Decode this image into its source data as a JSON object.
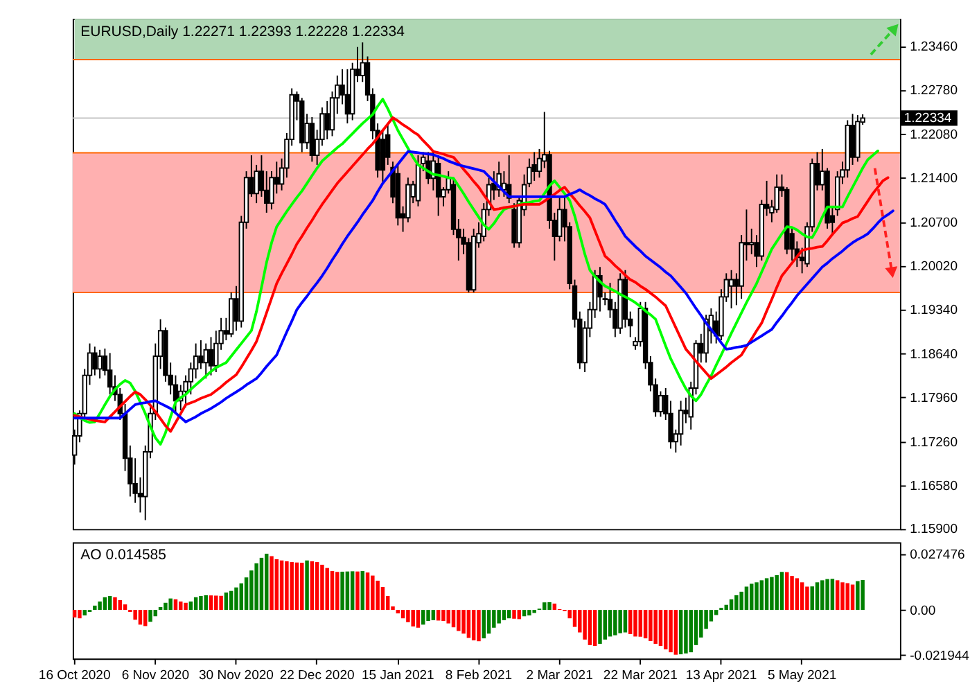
{
  "chart_data": [
    {
      "type": "candlestick",
      "title": "EURUSD,Daily  1.22271 1.22393 1.22228 1.22334",
      "tick_labels": "y",
      "categories": [
        null,
        null,
        null,
        null,
        null,
        null,
        null,
        null,
        null,
        null,
        null,
        null,
        null,
        null,
        null,
        null,
        null,
        null,
        null,
        null,
        null,
        null,
        null,
        null,
        null,
        null,
        null,
        null,
        null,
        null,
        null,
        null,
        null,
        null,
        null,
        null,
        null,
        null,
        null,
        null,
        null,
        null,
        null,
        null,
        null,
        null,
        null,
        null,
        null,
        null,
        null,
        null,
        null,
        null,
        null,
        null,
        null,
        null,
        null,
        null,
        null,
        null,
        null,
        null,
        null,
        null,
        null,
        null,
        null,
        null,
        null,
        null,
        null,
        null,
        null,
        null,
        null,
        null,
        null,
        null,
        null,
        null,
        null,
        null,
        null,
        null,
        null,
        null,
        null,
        null,
        null,
        null,
        null,
        null,
        null,
        null,
        null,
        null,
        null,
        null,
        null,
        null,
        null,
        null,
        null,
        null,
        null,
        null,
        null,
        null,
        null,
        null,
        null,
        null,
        null,
        null,
        null,
        null,
        null,
        null,
        null,
        null,
        null,
        null,
        null,
        null,
        null,
        null,
        null,
        null,
        null,
        null,
        null,
        null,
        null,
        null,
        null,
        null,
        null,
        null,
        null,
        null,
        null,
        null,
        null,
        null,
        null,
        null,
        null,
        null,
        null,
        null,
        null,
        null,
        null,
        null,
        null,
        null,
        null,
        null,
        null,
        null,
        null,
        null
      ],
      "ylim": [
        1.1589,
        1.2389
      ],
      "yticks": [
        {
          "value": 1.2346,
          "label": "1.23460"
        },
        {
          "value": 1.2278,
          "label": "1.22780"
        },
        {
          "value": 1.2208,
          "label": "1.22080"
        },
        {
          "value": 1.214,
          "label": "1.21400"
        },
        {
          "value": 1.207,
          "label": "1.20700"
        },
        {
          "value": 1.2002,
          "label": "1.20020"
        },
        {
          "value": 1.1934,
          "label": "1.19340"
        },
        {
          "value": 1.1864,
          "label": "1.18640"
        },
        {
          "value": 1.1796,
          "label": "1.17960"
        },
        {
          "value": 1.1726,
          "label": "1.17260"
        },
        {
          "value": 1.1658,
          "label": "1.16580"
        },
        {
          "value": 1.159,
          "label": "1.15900"
        }
      ],
      "bands": [
        {
          "axis": "y",
          "from": 1.2325,
          "to": 1.2389,
          "color": "#afd7b4"
        },
        {
          "axis": "y",
          "from": 1.196,
          "to": 1.2179,
          "color": "#ffb0b0"
        }
      ],
      "ref_lines": [
        {
          "axis": "y",
          "value": 1.22334,
          "label": "1.22334",
          "color": "#c0c0c0"
        },
        {
          "axis": "y",
          "value": 1.2325,
          "color": "#ff6600"
        },
        {
          "axis": "y",
          "value": 1.2179,
          "color": "#ff6600"
        },
        {
          "axis": "y",
          "value": 1.196,
          "color": "#ff6600"
        }
      ],
      "ohlc": [
        [
          1.1705,
          1.1745,
          1.169,
          1.1735
        ],
        [
          1.1735,
          1.1775,
          1.1725,
          1.177
        ],
        [
          1.177,
          1.184,
          1.176,
          1.183
        ],
        [
          1.183,
          1.188,
          1.1815,
          1.1865
        ],
        [
          1.1865,
          1.1875,
          1.183,
          1.184
        ],
        [
          1.184,
          1.187,
          1.1825,
          1.186
        ],
        [
          1.186,
          1.1872,
          1.183,
          1.1838
        ],
        [
          1.1838,
          1.1865,
          1.18,
          1.1812
        ],
        [
          1.1812,
          1.183,
          1.179,
          1.18
        ],
        [
          1.18,
          1.181,
          1.176,
          1.177
        ],
        [
          1.177,
          1.1785,
          1.168,
          1.17
        ],
        [
          1.17,
          1.172,
          1.164,
          1.166
        ],
        [
          1.166,
          1.17,
          1.163,
          1.1645
        ],
        [
          1.1645,
          1.167,
          1.1615,
          1.164
        ],
        [
          1.164,
          1.172,
          1.1603,
          1.171
        ],
        [
          1.171,
          1.178,
          1.17,
          1.177
        ],
        [
          1.177,
          1.188,
          1.176,
          1.186
        ],
        [
          1.186,
          1.1918,
          1.184,
          1.19
        ],
        [
          1.19,
          1.1905,
          1.182,
          1.183
        ],
        [
          1.183,
          1.185,
          1.18,
          1.1815
        ],
        [
          1.1815,
          1.183,
          1.177,
          1.179
        ],
        [
          1.179,
          1.1815,
          1.1775,
          1.1805
        ],
        [
          1.1805,
          1.183,
          1.178,
          1.182
        ],
        [
          1.182,
          1.185,
          1.18,
          1.184
        ],
        [
          1.184,
          1.188,
          1.1825,
          1.186
        ],
        [
          1.186,
          1.1885,
          1.184,
          1.185
        ],
        [
          1.185,
          1.188,
          1.1825,
          1.187
        ],
        [
          1.187,
          1.189,
          1.183,
          1.1845
        ],
        [
          1.1845,
          1.19,
          1.1835,
          1.188
        ],
        [
          1.188,
          1.192,
          1.187,
          1.19
        ],
        [
          1.19,
          1.192,
          1.1885,
          1.1895
        ],
        [
          1.1895,
          1.196,
          1.189,
          1.195
        ],
        [
          1.195,
          1.197,
          1.19,
          1.1915
        ],
        [
          1.1915,
          1.208,
          1.1905,
          1.207
        ],
        [
          1.207,
          1.215,
          1.206,
          1.214
        ],
        [
          1.214,
          1.2175,
          1.211,
          1.2115
        ],
        [
          1.2115,
          1.216,
          1.21,
          1.215
        ],
        [
          1.215,
          1.2175,
          1.211,
          1.212
        ],
        [
          1.212,
          1.215,
          1.2085,
          1.21
        ],
        [
          1.21,
          1.215,
          1.209,
          1.214
        ],
        [
          1.214,
          1.2165,
          1.2115,
          1.213
        ],
        [
          1.213,
          1.217,
          1.212,
          1.2155
        ],
        [
          1.2155,
          1.221,
          1.214,
          1.22
        ],
        [
          1.22,
          1.228,
          1.219,
          1.227
        ],
        [
          1.227,
          1.2275,
          1.223,
          1.226
        ],
        [
          1.226,
          1.2265,
          1.218,
          1.2195
        ],
        [
          1.2195,
          1.224,
          1.2185,
          1.2225
        ],
        [
          1.2225,
          1.2235,
          1.2165,
          1.2175
        ],
        [
          1.2175,
          1.2215,
          1.216,
          1.22
        ],
        [
          1.22,
          1.225,
          1.219,
          1.224
        ],
        [
          1.224,
          1.226,
          1.22,
          1.2215
        ],
        [
          1.2215,
          1.2275,
          1.2205,
          1.2265
        ],
        [
          1.2265,
          1.23,
          1.224,
          1.2285
        ],
        [
          1.2285,
          1.231,
          1.2255,
          1.227
        ],
        [
          1.227,
          1.231,
          1.2225,
          1.224
        ],
        [
          1.224,
          1.232,
          1.223,
          1.231
        ],
        [
          1.231,
          1.2345,
          1.229,
          1.23
        ],
        [
          1.23,
          1.2352,
          1.229,
          1.232
        ],
        [
          1.232,
          1.233,
          1.226,
          1.227
        ],
        [
          1.227,
          1.228,
          1.22,
          1.2214
        ],
        [
          1.2214,
          1.2225,
          1.214,
          1.2152
        ],
        [
          1.22,
          1.2215,
          1.213,
          1.2152
        ],
        [
          1.2207,
          1.2225,
          1.216,
          1.2172
        ],
        [
          1.2156,
          1.2165,
          1.21,
          1.211
        ],
        [
          1.2146,
          1.216,
          1.2065,
          1.2077
        ],
        [
          1.2083,
          1.2095,
          1.2055,
          1.2077
        ],
        [
          1.2077,
          1.214,
          1.207,
          1.2129
        ],
        [
          1.211,
          1.2135,
          1.21,
          1.2129
        ],
        [
          1.2104,
          1.2175,
          1.2095,
          1.216
        ],
        [
          1.2162,
          1.218,
          1.215,
          1.2172
        ],
        [
          1.2166,
          1.218,
          1.213,
          1.2139
        ],
        [
          1.2139,
          1.218,
          1.212,
          1.2166
        ],
        [
          1.2162,
          1.2175,
          1.208,
          1.211
        ],
        [
          1.211,
          1.2125,
          1.2095,
          1.2121
        ],
        [
          1.2121,
          1.215,
          1.2115,
          1.2139
        ],
        [
          1.2129,
          1.214,
          1.205,
          1.2059
        ],
        [
          1.2059,
          1.2075,
          1.201,
          1.2046
        ],
        [
          1.2046,
          1.206,
          1.202,
          1.2036
        ],
        [
          1.2038,
          1.2045,
          1.196,
          1.1964
        ],
        [
          1.1964,
          1.206,
          1.196,
          1.2048
        ],
        [
          1.2038,
          1.207,
          1.203,
          1.2052
        ],
        [
          1.2048,
          1.21,
          1.204,
          1.209
        ],
        [
          1.209,
          1.214,
          1.208,
          1.2129
        ],
        [
          1.2131,
          1.215,
          1.2105,
          1.2121
        ],
        [
          1.2121,
          1.2165,
          1.211,
          1.2146
        ],
        [
          1.2121,
          1.215,
          1.211,
          1.2131
        ],
        [
          1.2129,
          1.2175,
          1.21,
          1.2108
        ],
        [
          1.209,
          1.21,
          1.203,
          1.2038
        ],
        [
          1.2038,
          1.211,
          1.203,
          1.2104
        ],
        [
          1.209,
          1.2145,
          1.208,
          1.2129
        ],
        [
          1.2131,
          1.217,
          1.2125,
          1.2156
        ],
        [
          1.216,
          1.218,
          1.2135,
          1.215
        ],
        [
          1.215,
          1.2185,
          1.214,
          1.217
        ],
        [
          1.2166,
          1.2243,
          1.2155,
          1.2176
        ],
        [
          1.2176,
          1.2182,
          1.206,
          1.2073
        ],
        [
          1.2073,
          1.2085,
          1.201,
          1.2048
        ],
        [
          1.2048,
          1.211,
          1.204,
          1.209
        ],
        [
          1.209,
          1.211,
          1.204,
          1.2063
        ],
        [
          1.2063,
          1.207,
          1.1965,
          1.1974
        ],
        [
          1.197,
          1.198,
          1.1905,
          1.1918
        ],
        [
          1.1918,
          1.193,
          1.184,
          1.185
        ],
        [
          1.185,
          1.1915,
          1.1835,
          1.1904
        ],
        [
          1.1904,
          1.1945,
          1.189,
          1.1933
        ],
        [
          1.1933,
          1.1995,
          1.192,
          1.1986
        ],
        [
          1.1986,
          1.2,
          1.193,
          1.1953
        ],
        [
          1.195,
          1.196,
          1.194,
          1.1949
        ],
        [
          1.1949,
          1.1975,
          1.192,
          1.1933
        ],
        [
          1.1933,
          1.1945,
          1.189,
          1.1904
        ],
        [
          1.1904,
          1.199,
          1.1895,
          1.198
        ],
        [
          1.198,
          1.1995,
          1.1905,
          1.1918
        ],
        [
          1.1918,
          1.193,
          1.189,
          1.1908
        ],
        [
          1.1877,
          1.189,
          1.187,
          1.1883
        ],
        [
          1.1883,
          1.1945,
          1.1875,
          1.1935
        ],
        [
          1.1935,
          1.1945,
          1.184,
          1.185
        ],
        [
          1.185,
          1.186,
          1.1805,
          1.1815
        ],
        [
          1.1815,
          1.1825,
          1.1765,
          1.1773
        ],
        [
          1.1773,
          1.1805,
          1.1765,
          1.1798
        ],
        [
          1.1798,
          1.181,
          1.176,
          1.177
        ],
        [
          1.177,
          1.179,
          1.1715,
          1.1726
        ],
        [
          1.1726,
          1.1745,
          1.1709,
          1.1738
        ],
        [
          1.1738,
          1.179,
          1.172,
          1.1775
        ],
        [
          1.1775,
          1.1795,
          1.1755,
          1.177
        ],
        [
          1.1765,
          1.182,
          1.1745,
          1.181
        ],
        [
          1.181,
          1.1885,
          1.18,
          1.188
        ],
        [
          1.188,
          1.1895,
          1.185,
          1.1865
        ],
        [
          1.1865,
          1.1925,
          1.185,
          1.1918
        ],
        [
          1.19,
          1.1935,
          1.188,
          1.1924
        ],
        [
          1.1915,
          1.193,
          1.188,
          1.1892
        ],
        [
          1.1892,
          1.1965,
          1.1885,
          1.1953
        ],
        [
          1.1953,
          1.199,
          1.1945,
          1.198
        ],
        [
          1.197,
          1.1995,
          1.1935,
          1.198
        ],
        [
          1.198,
          1.199,
          1.194,
          1.197
        ],
        [
          1.197,
          1.205,
          1.195,
          1.2038
        ],
        [
          1.2038,
          1.209,
          1.201,
          1.2035
        ],
        [
          1.2035,
          1.206,
          1.202,
          1.2038
        ],
        [
          1.2038,
          1.205,
          1.2,
          1.2017
        ],
        [
          1.2017,
          1.2105,
          1.201,
          1.2098
        ],
        [
          1.2098,
          1.2135,
          1.208,
          1.2092
        ],
        [
          1.2085,
          1.2105,
          1.207,
          1.2094
        ],
        [
          1.209,
          1.2145,
          1.2085,
          1.2125
        ],
        [
          1.2125,
          1.2145,
          1.211,
          1.212
        ],
        [
          1.2121,
          1.2125,
          1.202,
          1.2028
        ],
        [
          1.2052,
          1.206,
          1.201,
          1.2028
        ],
        [
          1.2028,
          1.204,
          1.2,
          1.2015
        ],
        [
          1.2015,
          1.203,
          1.199,
          1.201
        ],
        [
          1.2005,
          1.207,
          1.2,
          1.2063
        ],
        [
          1.2063,
          1.217,
          1.2055,
          1.2162
        ],
        [
          1.2162,
          1.218,
          1.212,
          1.2129
        ],
        [
          1.2129,
          1.2185,
          1.212,
          1.215
        ],
        [
          1.215,
          1.2155,
          1.206,
          1.2069
        ],
        [
          1.208,
          1.2095,
          1.205,
          1.207
        ],
        [
          1.209,
          1.215,
          1.208,
          1.2141
        ],
        [
          1.2141,
          1.2165,
          1.213,
          1.2152
        ],
        [
          1.2152,
          1.223,
          1.214,
          1.2222
        ],
        [
          1.2222,
          1.224,
          1.216,
          1.2172
        ],
        [
          1.2172,
          1.2238,
          1.2165,
          1.2228
        ],
        [
          1.22271,
          1.22393,
          1.22228,
          1.22334
        ],
        null,
        null,
        null,
        null,
        null,
        null,
        null
      ],
      "series": [
        {
          "type": "line",
          "color": "#00ff00",
          "values": [
            1.177,
            1.1764,
            1.1759,
            1.1756,
            1.1757,
            1.177,
            1.1784,
            1.1797,
            1.1808,
            1.1816,
            1.1822,
            1.1818,
            1.1805,
            1.1788,
            1.177,
            1.175,
            1.1732,
            1.1722,
            1.174,
            1.1765,
            1.1788,
            1.1795,
            1.18,
            1.1808,
            1.1815,
            1.1822,
            1.1829,
            1.1836,
            1.1842,
            1.1846,
            1.185,
            1.186,
            1.187,
            1.188,
            1.189,
            1.19,
            1.193,
            1.1968,
            1.2007,
            1.2038,
            1.2063,
            1.2075,
            1.2087,
            1.2098,
            1.2109,
            1.2119,
            1.2131,
            1.2143,
            1.2155,
            1.2166,
            1.2173,
            1.218,
            1.2187,
            1.2193,
            1.2201,
            1.2209,
            1.2217,
            1.2225,
            1.2232,
            1.2239,
            1.2252,
            1.2263,
            1.2248,
            1.2231,
            1.2214,
            1.22,
            1.2186,
            1.2172,
            1.216,
            1.2155,
            1.215,
            1.2145,
            1.2144,
            1.2142,
            1.214,
            1.2139,
            1.2127,
            1.2115,
            1.2102,
            1.209,
            1.2078,
            1.2066,
            1.2059,
            1.2068,
            1.208,
            1.209,
            1.2093,
            1.2095,
            1.2098,
            1.21,
            1.2101,
            1.2103,
            1.2104,
            1.2115,
            1.2127,
            1.2135,
            1.2125,
            1.2115,
            1.2104,
            1.208,
            1.205,
            1.202,
            1.1995,
            1.1985,
            1.1977,
            1.197,
            1.1966,
            1.1962,
            1.1957,
            1.1953,
            1.1949,
            1.1944,
            1.1938,
            1.1931,
            1.1925,
            1.1918,
            1.1897,
            1.1876,
            1.1856,
            1.184,
            1.1824,
            1.1809,
            1.1798,
            1.179,
            1.18,
            1.1815,
            1.1829,
            1.1846,
            1.1862,
            1.1879,
            1.1896,
            1.1912,
            1.1928,
            1.1944,
            1.1959,
            1.1974,
            1.1992,
            1.201,
            1.2028,
            1.204,
            1.2052,
            1.2063,
            1.2062,
            1.2058,
            1.2052,
            1.2047,
            1.2046,
            1.206,
            1.2078,
            1.2094,
            1.2094,
            1.2094,
            1.2094,
            1.211,
            1.2125,
            1.214,
            1.2155,
            1.2168,
            1.2175,
            1.2182,
            null,
            null,
            null,
            null
          ]
        },
        {
          "type": "line",
          "color": "#ff0000",
          "values": [
            1.1767,
            1.1765,
            1.1763,
            1.1761,
            1.1759,
            1.1758,
            1.1757,
            1.1765,
            1.1773,
            1.1781,
            1.1789,
            1.1797,
            1.1804,
            1.18,
            1.1792,
            1.1783,
            1.1773,
            1.1762,
            1.1751,
            1.1742,
            1.1756,
            1.177,
            1.1784,
            1.1787,
            1.179,
            1.1794,
            1.1797,
            1.18,
            1.1806,
            1.1812,
            1.1819,
            1.1825,
            1.1831,
            1.1843,
            1.1856,
            1.1869,
            1.1883,
            1.1905,
            1.1928,
            1.1951,
            1.1974,
            1.199,
            1.2005,
            1.202,
            1.2036,
            1.2048,
            1.2061,
            1.2073,
            1.2086,
            1.2098,
            1.2109,
            1.212,
            1.2131,
            1.214,
            1.2149,
            1.2158,
            1.2167,
            1.2176,
            1.2185,
            1.2193,
            1.2203,
            1.2214,
            1.2224,
            1.2234,
            1.2229,
            1.2223,
            1.2218,
            1.2212,
            1.2207,
            1.2198,
            1.219,
            1.2181,
            1.2179,
            1.2177,
            1.2174,
            1.2172,
            1.2163,
            1.2153,
            1.2144,
            1.2134,
            1.2125,
            1.2113,
            1.2102,
            1.209,
            1.2091,
            1.2093,
            1.2094,
            1.2095,
            1.2097,
            1.2098,
            1.2098,
            1.2098,
            1.2098,
            1.2103,
            1.2109,
            1.2114,
            1.212,
            1.2125,
            1.2115,
            1.2106,
            1.2096,
            1.2087,
            1.2077,
            1.2057,
            1.2037,
            1.2017,
            1.201,
            1.2002,
            1.1995,
            1.1987,
            1.198,
            1.1976,
            1.197,
            1.1965,
            1.1959,
            1.1953,
            1.1946,
            1.1939,
            1.1922,
            1.1905,
            1.1888,
            1.1871,
            1.1862,
            1.1852,
            1.1843,
            1.1834,
            1.1825,
            1.1831,
            1.1837,
            1.1843,
            1.185,
            1.1856,
            1.1862,
            1.1875,
            1.1887,
            1.19,
            1.1912,
            1.1931,
            1.1949,
            1.1968,
            1.1986,
            1.1996,
            1.2006,
            1.2016,
            1.2026,
            1.2028,
            1.2029,
            1.2031,
            1.2032,
            1.2041,
            1.2051,
            1.206,
            1.2069,
            1.2072,
            1.2076,
            1.2079,
            1.2091,
            1.2103,
            1.2115,
            1.2125,
            1.2135,
            1.214,
            null,
            null
          ]
        },
        {
          "type": "line",
          "color": "#0000ff",
          "values": [
            1.1763,
            1.1763,
            1.1763,
            1.1763,
            1.1763,
            1.1763,
            1.1763,
            1.1763,
            1.1763,
            1.1763,
            1.177,
            1.1777,
            1.1784,
            1.1786,
            1.1787,
            1.1789,
            1.179,
            1.1786,
            1.1782,
            1.1778,
            1.1771,
            1.1764,
            1.1757,
            1.1761,
            1.1765,
            1.177,
            1.1774,
            1.1778,
            1.1783,
            1.1788,
            1.1794,
            1.1799,
            1.1804,
            1.1809,
            1.1815,
            1.182,
            1.1825,
            1.1834,
            1.1844,
            1.1853,
            1.1862,
            1.188,
            1.1898,
            1.1915,
            1.1933,
            1.1944,
            1.1954,
            1.1965,
            1.1975,
            1.1986,
            1.1998,
            1.2011,
            1.2023,
            1.2036,
            1.2048,
            1.2059,
            1.207,
            1.2082,
            1.2093,
            1.2104,
            1.2118,
            1.2131,
            1.2141,
            1.2151,
            1.2161,
            1.2171,
            1.2181,
            1.218,
            1.2179,
            1.2178,
            1.2177,
            1.2176,
            1.2173,
            1.217,
            1.2166,
            1.2163,
            1.216,
            1.2158,
            1.2156,
            1.2154,
            1.2152,
            1.215,
            1.2142,
            1.2134,
            1.2126,
            1.2118,
            1.211,
            1.211,
            1.211,
            1.211,
            1.211,
            1.211,
            1.211,
            1.211,
            1.211,
            1.211,
            1.211,
            1.211,
            1.2114,
            1.2117,
            1.2121,
            1.2116,
            1.2112,
            1.2107,
            1.2103,
            1.2098,
            1.2086,
            1.2073,
            1.2061,
            1.2048,
            1.204,
            1.2032,
            1.2025,
            1.2017,
            1.2011,
            1.2005,
            1.1999,
            1.1992,
            1.1986,
            1.1977,
            1.1968,
            1.1959,
            1.1947,
            1.1935,
            1.1924,
            1.1912,
            1.1902,
            1.1892,
            1.1881,
            1.1871,
            1.1872,
            1.1874,
            1.1875,
            1.1877,
            1.1882,
            1.1887,
            1.1892,
            1.1897,
            1.1902,
            1.1913,
            1.1923,
            1.1934,
            1.1944,
            1.1955,
            1.1964,
            1.1973,
            1.1982,
            1.1991,
            1.2,
            1.2006,
            1.2013,
            1.2019,
            1.2025,
            1.2032,
            1.2038,
            1.2043,
            1.2047,
            1.2052,
            1.206,
            1.2069,
            1.2077,
            1.2082,
            1.2088,
            null
          ]
        }
      ]
    },
    {
      "type": "bar",
      "title": "AO 0.014585",
      "categories": [
        "16 Oct 2020",
        null,
        null,
        null,
        null,
        null,
        null,
        null,
        null,
        null,
        null,
        null,
        null,
        null,
        null,
        null,
        "6 Nov 2020",
        null,
        null,
        null,
        null,
        null,
        null,
        null,
        null,
        null,
        null,
        null,
        null,
        null,
        null,
        null,
        "30 Nov 2020",
        null,
        null,
        null,
        null,
        null,
        null,
        null,
        null,
        null,
        null,
        null,
        null,
        null,
        null,
        null,
        "22 Dec 2020",
        null,
        null,
        null,
        null,
        null,
        null,
        null,
        null,
        null,
        null,
        null,
        null,
        null,
        null,
        null,
        "15 Jan 2021",
        null,
        null,
        null,
        null,
        null,
        null,
        null,
        null,
        null,
        null,
        null,
        null,
        null,
        null,
        null,
        "8 Feb 2021",
        null,
        null,
        null,
        null,
        null,
        null,
        null,
        null,
        null,
        null,
        null,
        null,
        null,
        null,
        null,
        "2 Mar 2021",
        null,
        null,
        null,
        null,
        null,
        null,
        null,
        null,
        null,
        null,
        null,
        null,
        null,
        null,
        null,
        "22 Mar 2021",
        null,
        null,
        null,
        null,
        null,
        null,
        null,
        null,
        null,
        null,
        null,
        null,
        null,
        null,
        null,
        "13 Apr 2021",
        null,
        null,
        null,
        null,
        null,
        null,
        null,
        null,
        null,
        null,
        null,
        null,
        null,
        null,
        null,
        "5 May 2021",
        null,
        null,
        null,
        null,
        null,
        null,
        null,
        null,
        null,
        null,
        null,
        null,
        null,
        null,
        null,
        null,
        null,
        null,
        null
      ],
      "ylim": [
        -0.0238,
        0.0331
      ],
      "yticks": [
        {
          "value": 0.027476,
          "label": "0.027476"
        },
        {
          "value": 0,
          "label": "0.00"
        },
        {
          "value": -0.021944,
          "label": "-0.021944"
        }
      ],
      "values": [
        -0.0037,
        -0.0041,
        -0.0027,
        -0.001,
        0.0021,
        0.0041,
        0.0062,
        0.0068,
        0.0062,
        0.0048,
        0.0027,
        -0.001,
        -0.0048,
        -0.0072,
        -0.0079,
        -0.0058,
        -0.0031,
        0.0014,
        0.0035,
        0.0056,
        0.0052,
        0.0041,
        0.0035,
        0.0041,
        0.0062,
        0.0068,
        0.0072,
        0.0071,
        0.007,
        0.0069,
        0.0085,
        0.0093,
        0.011,
        0.013,
        0.0159,
        0.0193,
        0.0228,
        0.0255,
        0.0275,
        0.0263,
        0.0248,
        0.0242,
        0.0238,
        0.0234,
        0.0232,
        0.0231,
        0.0242,
        0.0238,
        0.0234,
        0.0221,
        0.0205,
        0.019,
        0.0186,
        0.0187,
        0.0188,
        0.0189,
        0.0188,
        0.019,
        0.0183,
        0.0168,
        0.0143,
        0.0112,
        0.0068,
        0.0017,
        -0.0017,
        -0.0041,
        -0.006,
        -0.0081,
        -0.0087,
        -0.0072,
        -0.0054,
        -0.005,
        -0.0052,
        -0.0054,
        -0.0066,
        -0.0085,
        -0.0103,
        -0.0116,
        -0.0137,
        -0.0149,
        -0.0153,
        -0.0139,
        -0.0116,
        -0.0087,
        -0.0066,
        -0.005,
        -0.0041,
        -0.0043,
        -0.0045,
        -0.0031,
        -0.0027,
        -0.0015,
        0.0006,
        0.0037,
        0.0038,
        0.0031,
        0.0004,
        -0.0006,
        -0.0041,
        -0.0083,
        -0.011,
        -0.0145,
        -0.0172,
        -0.0176,
        -0.0166,
        -0.0145,
        -0.013,
        -0.0124,
        -0.0114,
        -0.011,
        -0.0118,
        -0.013,
        -0.0131,
        -0.0139,
        -0.0152,
        -0.0166,
        -0.0176,
        -0.0193,
        -0.0207,
        -0.0219,
        -0.0217,
        -0.0213,
        -0.0207,
        -0.0172,
        -0.0135,
        -0.0093,
        -0.0056,
        -0.0025,
        0.001,
        0.0025,
        0.0052,
        0.0072,
        0.0089,
        0.0114,
        0.0128,
        0.0135,
        0.0145,
        0.0155,
        0.0161,
        0.017,
        0.0186,
        0.0185,
        0.0166,
        0.0155,
        0.0135,
        0.0114,
        0.0115,
        0.0135,
        0.0145,
        0.0151,
        0.0152,
        0.0145,
        0.0135,
        0.0131,
        0.0124,
        0.0141,
        0.0146,
        null,
        null,
        null,
        null,
        null,
        null,
        null
      ],
      "colors": [
        "#ff0000",
        "#ff0000",
        "#008000",
        "#008000",
        "#008000",
        "#008000",
        "#008000",
        "#008000",
        "#ff0000",
        "#ff0000",
        "#ff0000",
        "#ff0000",
        "#ff0000",
        "#ff0000",
        "#ff0000",
        "#008000",
        "#008000",
        "#008000",
        "#008000",
        "#008000",
        "#ff0000",
        "#ff0000",
        "#ff0000",
        "#008000",
        "#008000",
        "#008000",
        "#008000",
        "#ff0000",
        "#ff0000",
        "#ff0000",
        "#008000",
        "#008000",
        "#008000",
        "#008000",
        "#008000",
        "#008000",
        "#008000",
        "#008000",
        "#008000",
        "#ff0000",
        "#ff0000",
        "#ff0000",
        "#ff0000",
        "#ff0000",
        "#ff0000",
        "#ff0000",
        "#008000",
        "#ff0000",
        "#ff0000",
        "#ff0000",
        "#ff0000",
        "#ff0000",
        "#ff0000",
        "#008000",
        "#008000",
        "#008000",
        "#ff0000",
        "#008000",
        "#ff0000",
        "#ff0000",
        "#ff0000",
        "#ff0000",
        "#ff0000",
        "#ff0000",
        "#ff0000",
        "#ff0000",
        "#ff0000",
        "#ff0000",
        "#ff0000",
        "#008000",
        "#008000",
        "#008000",
        "#ff0000",
        "#ff0000",
        "#ff0000",
        "#ff0000",
        "#ff0000",
        "#ff0000",
        "#ff0000",
        "#ff0000",
        "#ff0000",
        "#008000",
        "#008000",
        "#008000",
        "#008000",
        "#008000",
        "#008000",
        "#ff0000",
        "#ff0000",
        "#008000",
        "#008000",
        "#008000",
        "#008000",
        "#008000",
        "#008000",
        "#ff0000",
        "#ff0000",
        "#ff0000",
        "#ff0000",
        "#ff0000",
        "#ff0000",
        "#ff0000",
        "#ff0000",
        "#ff0000",
        "#008000",
        "#008000",
        "#008000",
        "#008000",
        "#008000",
        "#008000",
        "#ff0000",
        "#ff0000",
        "#ff0000",
        "#ff0000",
        "#ff0000",
        "#ff0000",
        "#ff0000",
        "#ff0000",
        "#ff0000",
        "#ff0000",
        "#008000",
        "#008000",
        "#008000",
        "#008000",
        "#008000",
        "#008000",
        "#008000",
        "#008000",
        "#008000",
        "#008000",
        "#008000",
        "#008000",
        "#008000",
        "#008000",
        "#008000",
        "#008000",
        "#008000",
        "#008000",
        "#008000",
        "#008000",
        "#008000",
        "#ff0000",
        "#ff0000",
        "#ff0000",
        "#ff0000",
        "#ff0000",
        "#008000",
        "#008000",
        "#008000",
        "#008000",
        "#008000",
        "#ff0000",
        "#ff0000",
        "#ff0000",
        "#ff0000",
        "#008000",
        "#008000",
        null,
        null,
        null,
        null,
        null,
        null,
        null
      ]
    }
  ]
}
